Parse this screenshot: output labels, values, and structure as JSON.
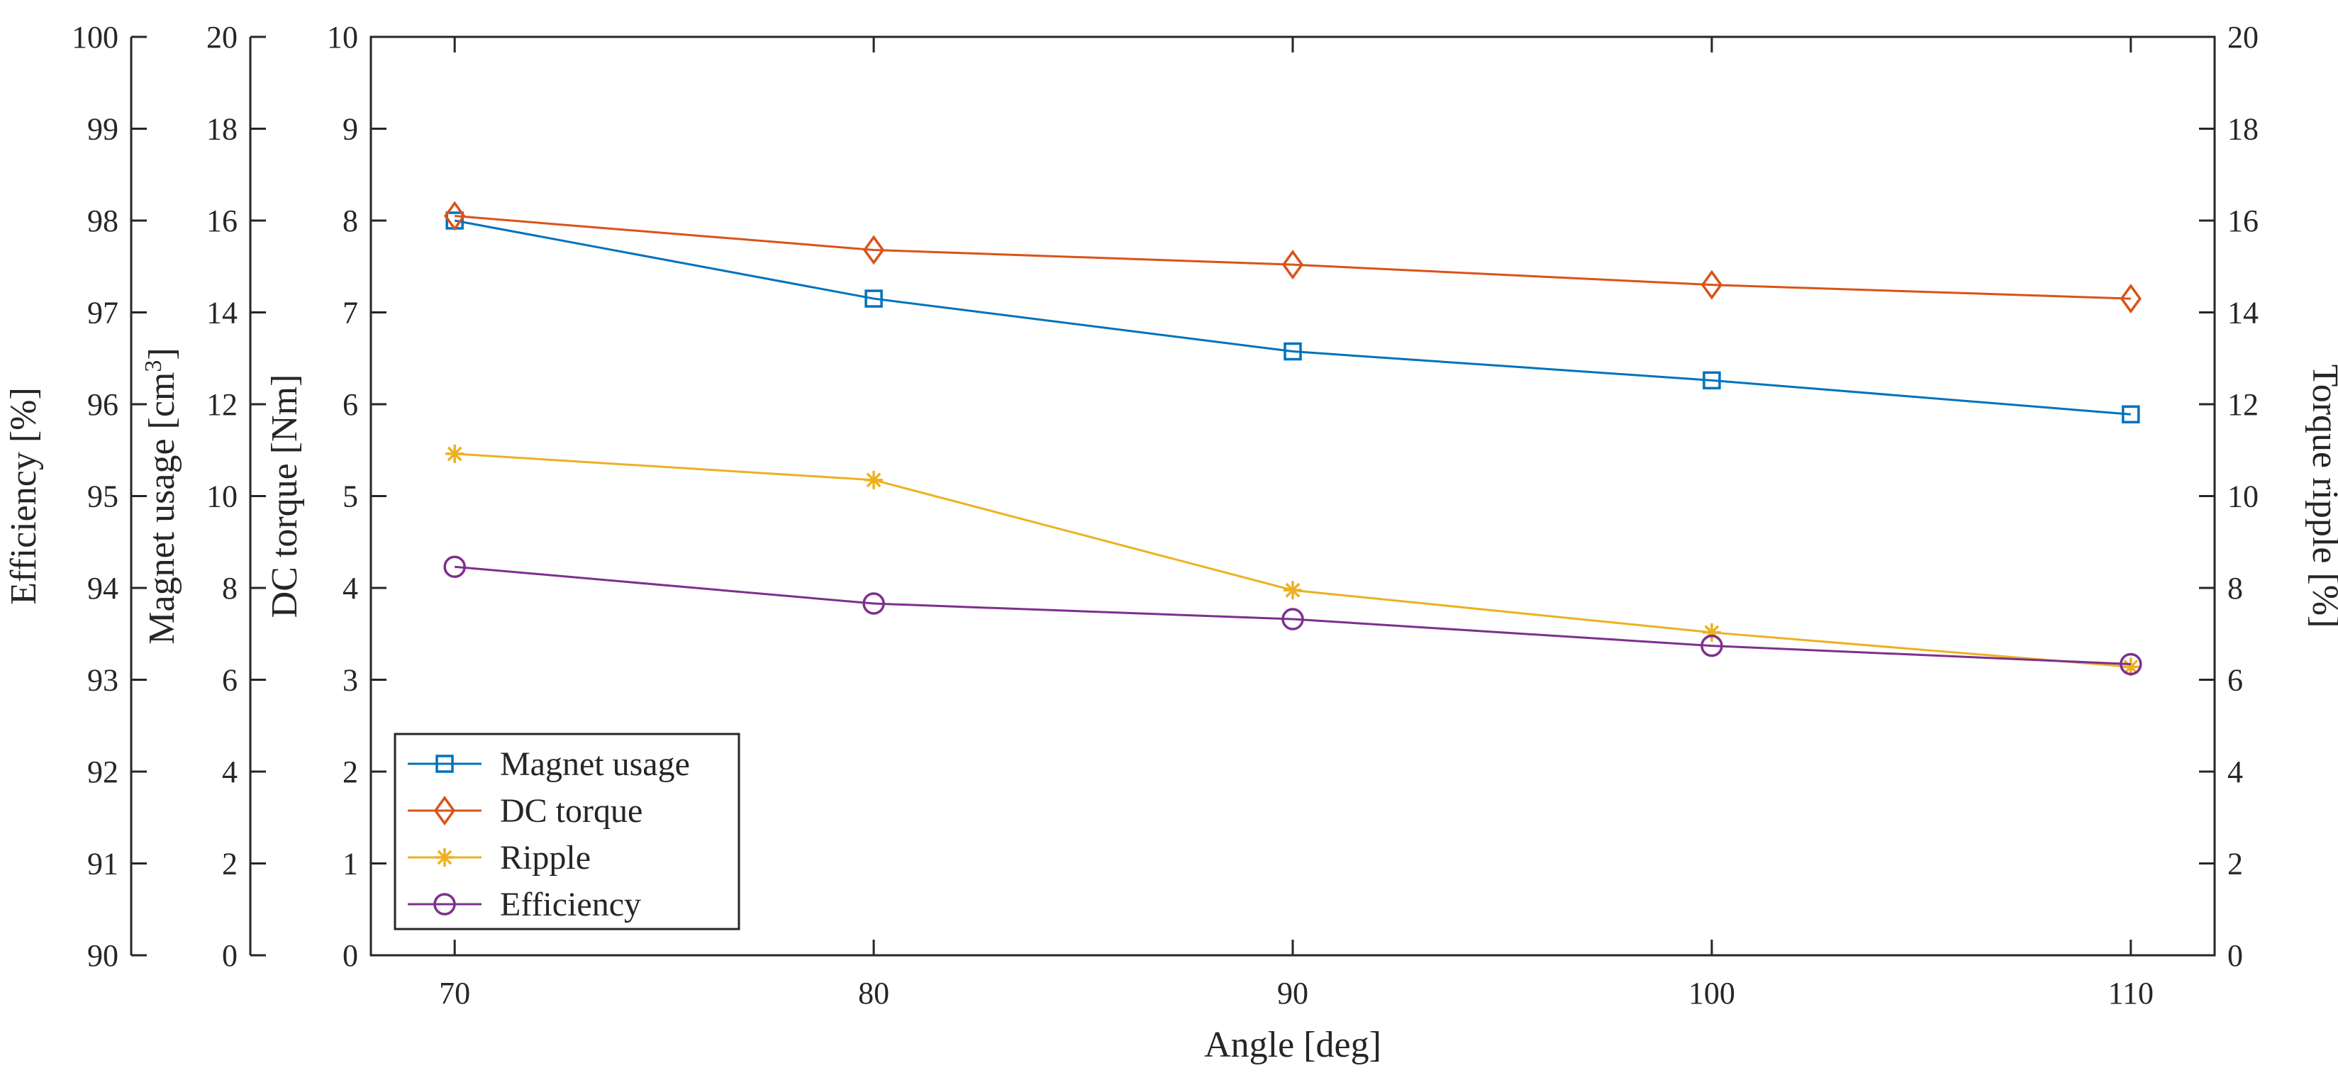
{
  "chart_data": {
    "type": "line",
    "xlabel": "Angle [deg]",
    "x": [
      70,
      80,
      90,
      100,
      110
    ],
    "xlim": [
      68,
      112
    ],
    "xticks": [
      70,
      80,
      90,
      100,
      110
    ],
    "axes": {
      "efficiency": {
        "label": "Efficiency [%]",
        "ylim": [
          90,
          100
        ],
        "ticks": [
          90,
          91,
          92,
          93,
          94,
          95,
          96,
          97,
          98,
          99,
          100
        ],
        "side": "left"
      },
      "magnet": {
        "label": "Magnet usage [cm",
        "label_sup": "3",
        "label_end": "]",
        "ylim": [
          0,
          20
        ],
        "ticks": [
          0,
          2,
          4,
          6,
          8,
          10,
          12,
          14,
          16,
          18,
          20
        ],
        "side": "left"
      },
      "torque": {
        "label": "DC torque [Nm]",
        "ylim": [
          0,
          10
        ],
        "ticks": [
          0,
          1,
          2,
          3,
          4,
          5,
          6,
          7,
          8,
          9,
          10
        ],
        "side": "left"
      },
      "ripple": {
        "label": "Torque ripple [%]",
        "ylim": [
          0,
          20
        ],
        "ticks": [
          0,
          2,
          4,
          6,
          8,
          10,
          12,
          14,
          16,
          18,
          20
        ],
        "side": "right"
      }
    },
    "series": [
      {
        "name": "Magnet usage",
        "axis": "magnet",
        "values": [
          16.0,
          14.3,
          13.15,
          12.52,
          11.78
        ],
        "color": "#0072BD",
        "marker": "square"
      },
      {
        "name": "DC torque",
        "axis": "torque",
        "values": [
          8.05,
          7.68,
          7.52,
          7.3,
          7.15
        ],
        "color": "#D95319",
        "marker": "diamond"
      },
      {
        "name": "Ripple",
        "axis": "ripple",
        "values": [
          10.92,
          10.35,
          7.95,
          7.03,
          6.28
        ],
        "color": "#EDB120",
        "marker": "asterisk"
      },
      {
        "name": "Efficiency",
        "axis": "efficiency",
        "values": [
          94.23,
          93.83,
          93.66,
          93.37,
          93.17
        ],
        "color": "#7E2F8E",
        "marker": "circle"
      }
    ],
    "legend": {
      "position": "bottom-left"
    }
  }
}
